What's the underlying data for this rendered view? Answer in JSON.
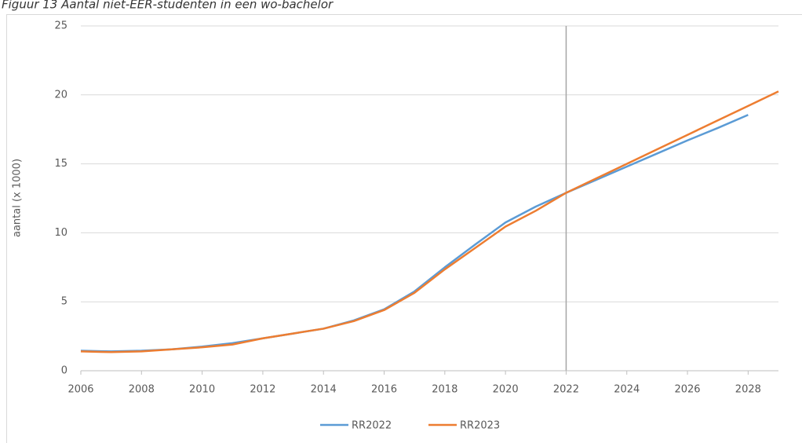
{
  "chart_data": {
    "type": "line",
    "title": "Figuur 13 Aantal niet-EER-studenten in een wo-bachelor",
    "y_label": "aantal (x 1000)",
    "x": [
      2006,
      2007,
      2008,
      2009,
      2010,
      2011,
      2012,
      2013,
      2014,
      2015,
      2016,
      2017,
      2018,
      2019,
      2020,
      2021,
      2022,
      2023,
      2024,
      2025,
      2026,
      2027,
      2028,
      2029
    ],
    "series": [
      {
        "name": "RR2022",
        "color": "#5b9bd5",
        "values": [
          1.45,
          1.4,
          1.45,
          1.55,
          1.75,
          2.0,
          2.35,
          2.7,
          3.05,
          3.65,
          4.45,
          5.75,
          7.5,
          9.15,
          10.75,
          11.9,
          12.9,
          13.85,
          14.8,
          15.75,
          16.7,
          17.6,
          18.55,
          null
        ]
      },
      {
        "name": "RR2023",
        "color": "#ed7d31",
        "values": [
          1.4,
          1.35,
          1.4,
          1.55,
          1.7,
          1.9,
          2.35,
          2.7,
          3.05,
          3.6,
          4.4,
          5.65,
          7.35,
          8.9,
          10.45,
          11.6,
          12.9,
          13.95,
          15.0,
          16.05,
          17.1,
          18.15,
          19.2,
          20.25
        ]
      }
    ],
    "xlim": [
      2006,
      2029
    ],
    "xticks": [
      2006,
      2008,
      2010,
      2012,
      2014,
      2016,
      2018,
      2020,
      2022,
      2024,
      2026,
      2028
    ],
    "ylim": [
      0,
      25
    ],
    "yticks": [
      0,
      5,
      10,
      15,
      20,
      25
    ],
    "reference_x": 2022,
    "grid": true,
    "legend": "bottom"
  }
}
